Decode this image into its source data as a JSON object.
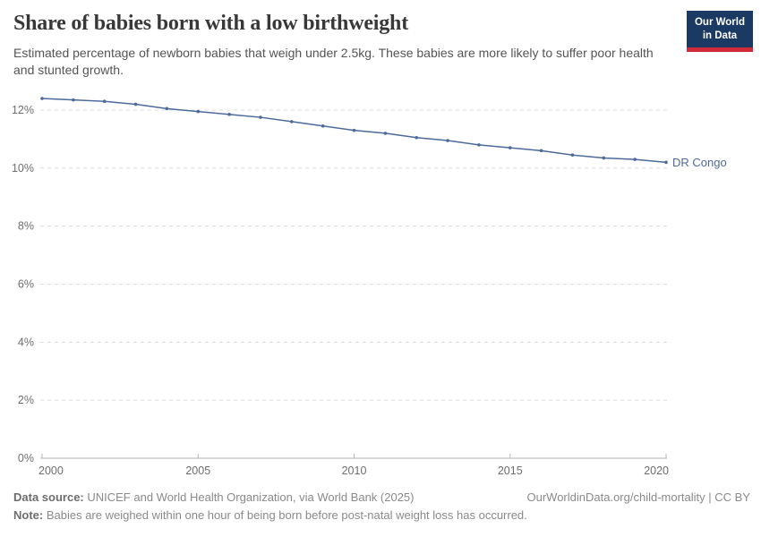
{
  "header": {
    "title": "Share of babies born with a low birthweight",
    "subtitle": "Estimated percentage of newborn babies that weigh under 2.5kg. These babies are more likely to suffer poor health and stunted growth.",
    "logo": {
      "line1": "Our World",
      "line2": "in Data"
    }
  },
  "chart_data": {
    "type": "line",
    "title": "Share of babies born with a low birthweight",
    "xlabel": "",
    "ylabel": "",
    "xlim": [
      2000,
      2020
    ],
    "ylim": [
      0,
      12.9
    ],
    "x_ticks": [
      2000,
      2005,
      2010,
      2015,
      2020
    ],
    "y_ticks": [
      0,
      2,
      4,
      6,
      8,
      10,
      12
    ],
    "y_tick_suffix": "%",
    "grid": "horizontal-dashed",
    "legend": "end-of-line-label",
    "series": [
      {
        "name": "DR Congo",
        "color": "#4C6A9C",
        "x": [
          2000,
          2001,
          2002,
          2003,
          2004,
          2005,
          2006,
          2007,
          2008,
          2009,
          2010,
          2011,
          2012,
          2013,
          2014,
          2015,
          2016,
          2017,
          2018,
          2019,
          2020
        ],
        "values": [
          12.4,
          12.35,
          12.3,
          12.2,
          12.05,
          11.95,
          11.85,
          11.75,
          11.6,
          11.45,
          11.3,
          11.2,
          11.05,
          10.95,
          10.8,
          10.7,
          10.6,
          10.45,
          10.35,
          10.3,
          10.2
        ]
      }
    ]
  },
  "footer": {
    "datasource_label": "Data source:",
    "datasource": " UNICEF and World Health Organization, via World Bank (2025)",
    "rights": "OurWorldinData.org/child-mortality | CC BY",
    "note_label": "Note:",
    "note": " Babies are weighed within one hour of being born before post-natal weight loss has occurred."
  },
  "colors": {
    "line": "#4C6A9C",
    "gridline": "#dcdcdc",
    "axis": "#b5b5b5",
    "tick_text": "#6e6e6e",
    "logo_bg": "#1a3a63",
    "logo_red": "#d12b3a"
  }
}
